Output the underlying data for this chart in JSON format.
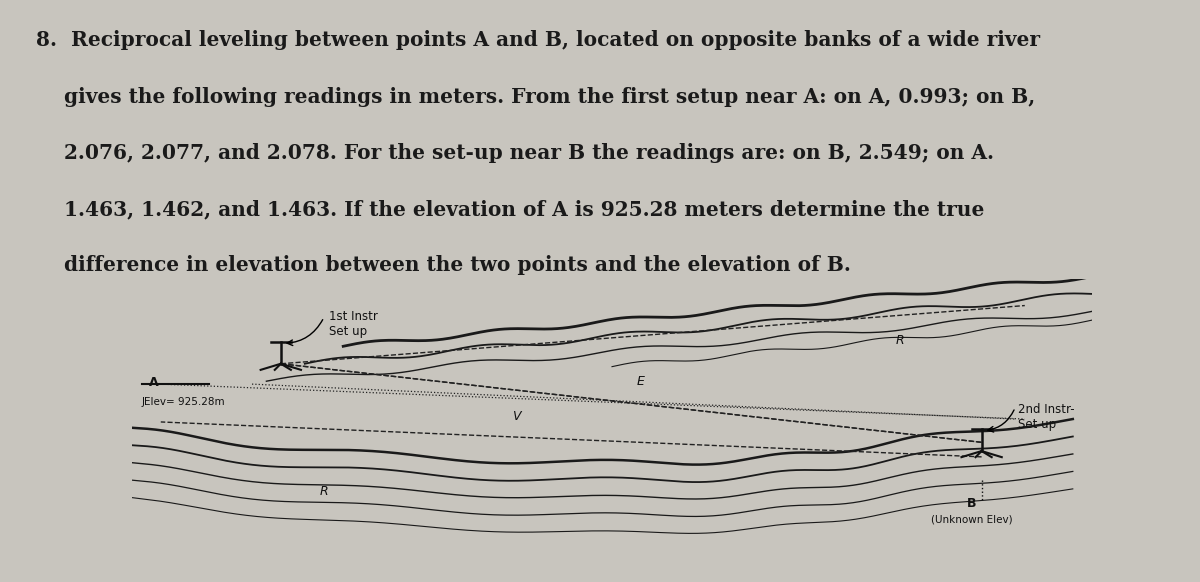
{
  "bg_color": "#c8c5be",
  "diagram_bg": "#d6d3cc",
  "text_color": "#1a1a1a",
  "diagram_inner_bg": "#dedad3",
  "label_A": "A",
  "label_B": "B",
  "elev_A": "JElev= 925.28m",
  "elev_B": "(Unknown Elev)",
  "instr1_label": "1st Instr\nSet up",
  "instr2_label": "2nd Instr-\nSet up",
  "label_R_left": "R",
  "label_R_right": "R",
  "label_E": "E",
  "label_V": "V",
  "text_line1": "8.  Reciprocal leveling between points A and B, located on opposite banks of a wide river",
  "text_line2": "    gives the following readings in meters. From the first setup near A: on A, 0.993; on B,",
  "text_line3": "    2.076, 2.077, and 2.078. For the set-up near B the readings are: on B, 2.549; on A.",
  "text_line4": "    1.463, 1.462, and 1.463. If the elevation of A is 925.28 meters determine the true",
  "text_line5": "    difference in elevation between the two points and the elevation of B.",
  "font_size_title": 14.5,
  "font_size_diagram": 8.5
}
